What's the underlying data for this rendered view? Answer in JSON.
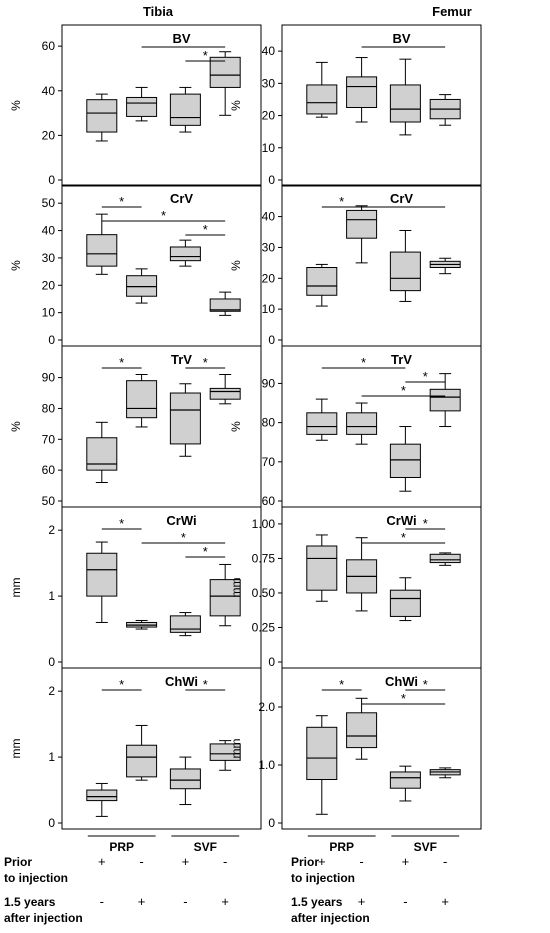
{
  "columns": [
    {
      "title": "Tibia",
      "groups": [
        "PRP",
        "SVF"
      ]
    },
    {
      "title": "Femur",
      "groups": [
        "PRP",
        "SVF"
      ]
    }
  ],
  "conditions": {
    "prior_label": [
      "Prior",
      "to injection"
    ],
    "post_label": [
      "1.5 years",
      "after injection"
    ],
    "prior_signs": [
      "+",
      "-",
      "+",
      "-"
    ],
    "post_signs": [
      "-",
      "+",
      "-",
      "+"
    ]
  },
  "colors": {
    "box_fill": "#d0d0d0",
    "stroke": "#000000"
  },
  "chart_data": [
    {
      "type": "box",
      "column": "Tibia",
      "panel_label": "BV",
      "ylabel": "%",
      "ylim": [
        0,
        65
      ],
      "yticks": [
        "0",
        "20",
        "40",
        "60"
      ],
      "ytick_values": [
        0,
        20,
        40,
        60
      ],
      "boxes": [
        {
          "min": 17.5,
          "q1": 21.5,
          "median": 30,
          "q3": 36,
          "max": 38.5
        },
        {
          "min": 26.5,
          "q1": 28.5,
          "median": 34.5,
          "q3": 37,
          "max": 41.5
        },
        {
          "min": 21.5,
          "q1": 24.5,
          "median": 28,
          "q3": 38.5,
          "max": 41.5
        },
        {
          "min": 29,
          "q1": 41.5,
          "median": 47,
          "q3": 55,
          "max": 57.5
        }
      ],
      "sig": [
        {
          "from": 1,
          "to": 3,
          "level": 1
        },
        {
          "from": 2,
          "to": 3,
          "level": 2
        }
      ]
    },
    {
      "type": "box",
      "column": "Tibia",
      "panel_label": "CrV",
      "ylabel": "%",
      "ylim": [
        0,
        53
      ],
      "yticks": [
        "0",
        "10",
        "20",
        "30",
        "40",
        "50"
      ],
      "ytick_values": [
        0,
        10,
        20,
        30,
        40,
        50
      ],
      "boxes": [
        {
          "min": 24,
          "q1": 27,
          "median": 31.5,
          "q3": 38.5,
          "max": 46
        },
        {
          "min": 13.5,
          "q1": 16,
          "median": 19.5,
          "q3": 23.5,
          "max": 26
        },
        {
          "min": 27,
          "q1": 29,
          "median": 30.5,
          "q3": 34,
          "max": 36.5
        },
        {
          "min": 9,
          "q1": 10.5,
          "median": 11,
          "q3": 15,
          "max": 17.5
        }
      ],
      "sig": [
        {
          "from": 0,
          "to": 1,
          "level": 1
        },
        {
          "from": 0,
          "to": 3,
          "level": 2
        },
        {
          "from": 2,
          "to": 3,
          "level": 3
        }
      ]
    },
    {
      "type": "box",
      "column": "Tibia",
      "panel_label": "TrV",
      "ylabel": "%",
      "ylim": [
        50,
        97
      ],
      "yticks": [
        "50",
        "60",
        "70",
        "80",
        "90"
      ],
      "ytick_values": [
        50,
        60,
        70,
        80,
        90
      ],
      "boxes": [
        {
          "min": 56,
          "q1": 60,
          "median": 62,
          "q3": 70.5,
          "max": 75.5
        },
        {
          "min": 74,
          "q1": 77,
          "median": 80,
          "q3": 89,
          "max": 91
        },
        {
          "min": 64.5,
          "q1": 68.5,
          "median": 79.5,
          "q3": 85,
          "max": 88
        },
        {
          "min": 81.5,
          "q1": 83,
          "median": 85.5,
          "q3": 86.5,
          "max": 91
        }
      ],
      "sig": [
        {
          "from": 0,
          "to": 1,
          "level": 1
        },
        {
          "from": 2,
          "to": 3,
          "level": 1
        }
      ]
    },
    {
      "type": "box",
      "column": "Tibia",
      "panel_label": "CrWi",
      "ylabel": "mm",
      "ylim": [
        0,
        2.2
      ],
      "yticks": [
        "0",
        "1",
        "2"
      ],
      "ytick_values": [
        0,
        1,
        2
      ],
      "boxes": [
        {
          "min": 0.6,
          "q1": 1.0,
          "median": 1.4,
          "q3": 1.65,
          "max": 1.82
        },
        {
          "min": 0.5,
          "q1": 0.53,
          "median": 0.56,
          "q3": 0.6,
          "max": 0.63
        },
        {
          "min": 0.4,
          "q1": 0.45,
          "median": 0.5,
          "q3": 0.7,
          "max": 0.75
        },
        {
          "min": 0.55,
          "q1": 0.7,
          "median": 1.0,
          "q3": 1.25,
          "max": 1.48
        }
      ],
      "sig": [
        {
          "from": 0,
          "to": 1,
          "level": 1
        },
        {
          "from": 1,
          "to": 3,
          "level": 2
        },
        {
          "from": 2,
          "to": 3,
          "level": 3
        }
      ]
    },
    {
      "type": "box",
      "column": "Tibia",
      "panel_label": "ChWi",
      "ylabel": "mm",
      "ylim": [
        0,
        2.2
      ],
      "yticks": [
        "0",
        "1",
        "2"
      ],
      "ytick_values": [
        0,
        1,
        2
      ],
      "boxes": [
        {
          "min": 0.1,
          "q1": 0.34,
          "median": 0.4,
          "q3": 0.5,
          "max": 0.6
        },
        {
          "min": 0.65,
          "q1": 0.7,
          "median": 1.0,
          "q3": 1.18,
          "max": 1.48
        },
        {
          "min": 0.28,
          "q1": 0.52,
          "median": 0.65,
          "q3": 0.82,
          "max": 1.0
        },
        {
          "min": 0.8,
          "q1": 0.95,
          "median": 1.05,
          "q3": 1.2,
          "max": 1.25
        }
      ],
      "sig": [
        {
          "from": 0,
          "to": 1,
          "level": 1
        },
        {
          "from": 2,
          "to": 3,
          "level": 1
        }
      ]
    },
    {
      "type": "box",
      "column": "Femur",
      "panel_label": "BV",
      "ylabel": "%",
      "ylim": [
        0,
        45
      ],
      "yticks": [
        "0",
        "10",
        "20",
        "30",
        "40"
      ],
      "ytick_values": [
        0,
        10,
        20,
        30,
        40
      ],
      "boxes": [
        {
          "min": 19.5,
          "q1": 20.5,
          "median": 24,
          "q3": 29.5,
          "max": 36.5
        },
        {
          "min": 18,
          "q1": 22.5,
          "median": 29,
          "q3": 32,
          "max": 38
        },
        {
          "min": 14,
          "q1": 18,
          "median": 22,
          "q3": 29.5,
          "max": 37.5
        },
        {
          "min": 17,
          "q1": 19,
          "median": 22,
          "q3": 25,
          "max": 26.5
        }
      ],
      "sig": [
        {
          "from": 1,
          "to": 3,
          "level": 1
        }
      ]
    },
    {
      "type": "box",
      "column": "Femur",
      "panel_label": "CrV",
      "ylabel": "%",
      "ylim": [
        0,
        47
      ],
      "yticks": [
        "0",
        "10",
        "20",
        "30",
        "40"
      ],
      "ytick_values": [
        0,
        10,
        20,
        30,
        40
      ],
      "boxes": [
        {
          "min": 11,
          "q1": 14.5,
          "median": 17.5,
          "q3": 23.5,
          "max": 24.5
        },
        {
          "min": 25,
          "q1": 33,
          "median": 39,
          "q3": 42,
          "max": 43.5
        },
        {
          "min": 12.5,
          "q1": 16,
          "median": 20,
          "q3": 28.5,
          "max": 35.5
        },
        {
          "min": 21.5,
          "q1": 23.5,
          "median": 24.5,
          "q3": 25.5,
          "max": 26.5
        }
      ],
      "sig": [
        {
          "from": 0,
          "to": 1,
          "level": 1
        },
        {
          "from": 1,
          "to": 3,
          "level": 1
        }
      ]
    },
    {
      "type": "box",
      "column": "Femur",
      "panel_label": "TrV",
      "ylabel": "%",
      "ylim": [
        60,
        97
      ],
      "yticks": [
        "60",
        "70",
        "80",
        "90"
      ],
      "ytick_values": [
        60,
        70,
        80,
        90
      ],
      "boxes": [
        {
          "min": 75.5,
          "q1": 77,
          "median": 79,
          "q3": 82.5,
          "max": 86
        },
        {
          "min": 74.5,
          "q1": 77,
          "median": 79,
          "q3": 82.5,
          "max": 85
        },
        {
          "min": 62.5,
          "q1": 66,
          "median": 70.5,
          "q3": 74.5,
          "max": 79
        },
        {
          "min": 79,
          "q1": 83,
          "median": 86.5,
          "q3": 88.5,
          "max": 92.5
        }
      ],
      "sig": [
        {
          "from": 0,
          "to": 2,
          "level": 1
        },
        {
          "from": 2,
          "to": 3,
          "level": 2
        },
        {
          "from": 1,
          "to": 3,
          "level": 3
        }
      ]
    },
    {
      "type": "box",
      "column": "Femur",
      "panel_label": "CrWi",
      "ylabel": "mm",
      "ylim": [
        0,
        1.05
      ],
      "yticks": [
        "0",
        "0.25",
        "0.50",
        "0.75",
        "1.00"
      ],
      "ytick_values": [
        0,
        0.25,
        0.5,
        0.75,
        1.0
      ],
      "boxes": [
        {
          "min": 0.44,
          "q1": 0.52,
          "median": 0.75,
          "q3": 0.84,
          "max": 0.92
        },
        {
          "min": 0.37,
          "q1": 0.5,
          "median": 0.62,
          "q3": 0.74,
          "max": 0.9
        },
        {
          "min": 0.3,
          "q1": 0.33,
          "median": 0.46,
          "q3": 0.52,
          "max": 0.61
        },
        {
          "min": 0.7,
          "q1": 0.72,
          "median": 0.74,
          "q3": 0.78,
          "max": 0.79
        }
      ],
      "sig": [
        {
          "from": 2,
          "to": 3,
          "level": 1
        },
        {
          "from": 1,
          "to": 3,
          "level": 2
        }
      ]
    },
    {
      "type": "box",
      "column": "Femur",
      "panel_label": "ChWi",
      "ylabel": "mm",
      "ylim": [
        0,
        2.5
      ],
      "yticks": [
        "0",
        "1.0",
        "2.0"
      ],
      "ytick_values": [
        0,
        1.0,
        2.0
      ],
      "boxes": [
        {
          "min": 0.15,
          "q1": 0.75,
          "median": 1.12,
          "q3": 1.65,
          "max": 1.85
        },
        {
          "min": 1.1,
          "q1": 1.3,
          "median": 1.5,
          "q3": 1.9,
          "max": 2.15
        },
        {
          "min": 0.38,
          "q1": 0.6,
          "median": 0.78,
          "q3": 0.88,
          "max": 0.98
        },
        {
          "min": 0.78,
          "q1": 0.83,
          "median": 0.88,
          "q3": 0.92,
          "max": 0.95
        }
      ],
      "sig": [
        {
          "from": 0,
          "to": 1,
          "level": 1
        },
        {
          "from": 1,
          "to": 3,
          "level": 2
        },
        {
          "from": 2,
          "to": 3,
          "level": 1
        }
      ]
    }
  ]
}
